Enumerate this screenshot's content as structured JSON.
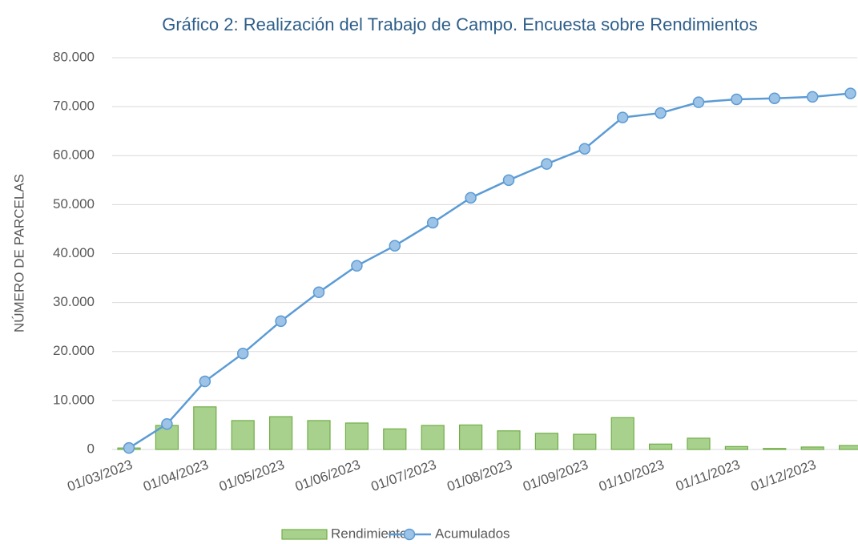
{
  "chart_data": {
    "type": "bar_line",
    "title": "Gráfico 2: Realización del Trabajo de Campo. Encuesta sobre Rendimientos",
    "ylabel": "NÚMERO DE PARCELAS",
    "categories": [
      "01/03/2023",
      null,
      "01/04/2023",
      null,
      "01/05/2023",
      null,
      "01/06/2023",
      null,
      "01/07/2023",
      null,
      "01/08/2023",
      null,
      "01/09/2023",
      null,
      "01/10/2023",
      null,
      "01/11/2023",
      null,
      "01/12/2023",
      null
    ],
    "series": [
      {
        "name": "Rendimientos",
        "type": "bar",
        "color": "#a9d18e",
        "edge": "#70ad47",
        "values": [
          300,
          4900,
          8700,
          5900,
          6700,
          5900,
          5400,
          4200,
          4900,
          5000,
          3800,
          3300,
          3100,
          6500,
          1100,
          2300,
          600,
          200,
          500,
          800
        ]
      },
      {
        "name": "Acumulados",
        "type": "line",
        "color": "#5b9bd5",
        "marker": "#9dc3e6",
        "values": [
          300,
          5200,
          13900,
          19600,
          26200,
          32100,
          37500,
          41600,
          46300,
          51400,
          55000,
          58300,
          61400,
          67800,
          68700,
          70900,
          71500,
          71700,
          72000,
          72700
        ]
      }
    ],
    "ylim": [
      0,
      80000
    ],
    "yticks": [
      0,
      {
        "value": 10000,
        "label": "10.000"
      },
      {
        "value": 20000,
        "label": "20.000"
      },
      {
        "value": 30000,
        "label": "30.000"
      },
      {
        "value": 40000,
        "label": "40.000"
      },
      {
        "value": 50000,
        "label": "50.000"
      },
      {
        "value": 60000,
        "label": "60.000"
      },
      {
        "value": 70000,
        "label": "70.000"
      },
      {
        "value": 80000,
        "label": "80.000"
      }
    ],
    "grid": true,
    "legend": "bottom"
  }
}
